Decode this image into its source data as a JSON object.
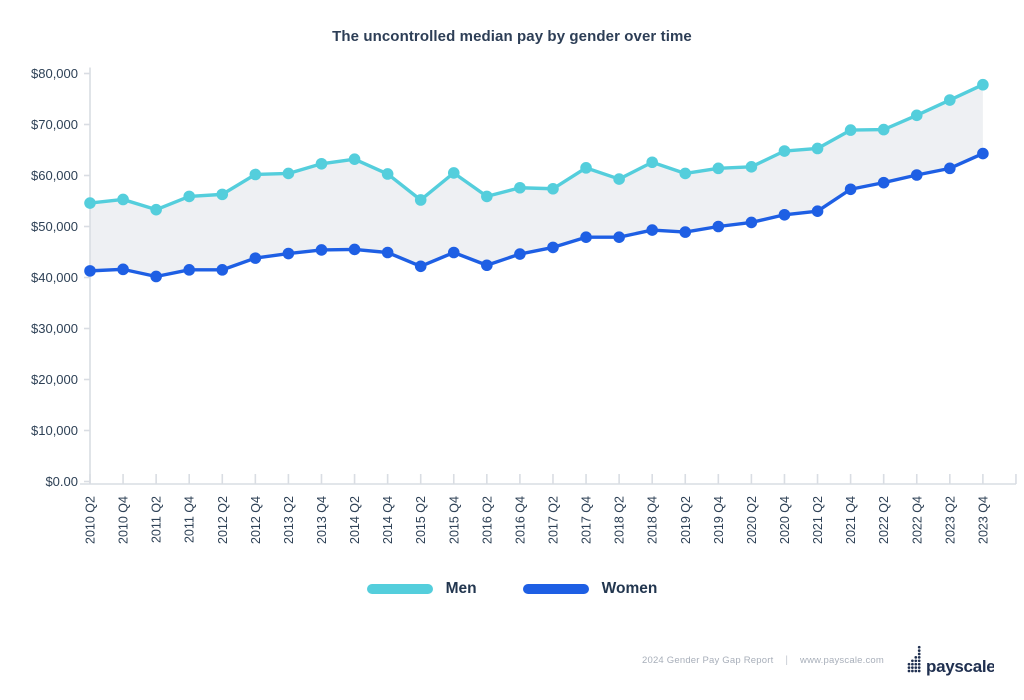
{
  "title": "The uncontrolled median pay by gender over time",
  "chart_data": {
    "type": "line",
    "categories": [
      "2010 Q2",
      "2010 Q4",
      "2011 Q2",
      "2011 Q4",
      "2012 Q2",
      "2012 Q4",
      "2013 Q2",
      "2013 Q4",
      "2014 Q2",
      "2014 Q4",
      "2015 Q2",
      "2015 Q4",
      "2016 Q2",
      "2016 Q4",
      "2017 Q2",
      "2017 Q4",
      "2018 Q2",
      "2018 Q4",
      "2019 Q2",
      "2019 Q4",
      "2020 Q2",
      "2020 Q4",
      "2021 Q2",
      "2021 Q4",
      "2022 Q2",
      "2022 Q4",
      "2023 Q2",
      "2023 Q4"
    ],
    "series": [
      {
        "name": "Men",
        "color": "#54cedc",
        "values": [
          54600,
          55300,
          53300,
          55900,
          56300,
          60200,
          60400,
          62300,
          63200,
          60300,
          55200,
          60500,
          55900,
          57600,
          57400,
          61500,
          59300,
          62600,
          60400,
          61400,
          61700,
          64800,
          65300,
          68900,
          69000,
          71800,
          74800,
          77800
        ]
      },
      {
        "name": "Women",
        "color": "#1e5fe4",
        "values": [
          41300,
          41600,
          40200,
          41500,
          41500,
          43800,
          44700,
          45400,
          45500,
          44900,
          42200,
          44900,
          42400,
          44600,
          45900,
          47900,
          47900,
          49300,
          48900,
          50000,
          50800,
          52300,
          53000,
          57300,
          58600,
          60100,
          61400,
          64300
        ]
      }
    ],
    "area_between_series": true,
    "area_fill_color": "#eef0f3",
    "ylim": [
      0,
      80000
    ],
    "y_tick_step": 10000,
    "y_tick_labels": [
      "$0.00",
      "$10,000",
      "$20,000",
      "$30,000",
      "$40,000",
      "$50,000",
      "$60,000",
      "$70,000",
      "$80,000"
    ],
    "xlabel": "",
    "ylabel": "",
    "grid": false,
    "legend_position": "bottom",
    "x_labels_rotated_degrees": -90
  },
  "legend": {
    "items": [
      {
        "label": "Men",
        "color": "#54cedc"
      },
      {
        "label": "Women",
        "color": "#1e5fe4"
      }
    ]
  },
  "footer": {
    "report": "2024 Gender Pay Gap Report",
    "separator": "|",
    "website": "www.payscale.com",
    "logo_text": "payscale"
  },
  "colors": {
    "title": "#2d3e56",
    "axis": "#d9dde3",
    "tick_label": "#2e4156",
    "footer_text": "#a8afba",
    "logo": "#203050",
    "background": "#ffffff"
  }
}
